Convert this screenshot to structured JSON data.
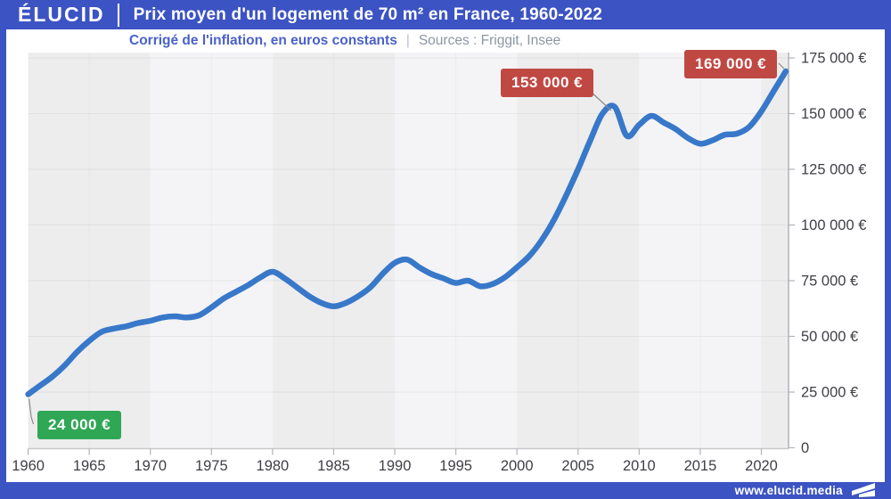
{
  "header": {
    "logo": "ÉLUCID",
    "title": "Prix moyen d'un logement de 70 m² en France, 1960-2022"
  },
  "subtitle": {
    "note": "Corrigé de l'inflation, en euros constants",
    "separator": "|",
    "sources": "Sources : Friggit, Insee"
  },
  "footer": {
    "url": "www.elucid.media"
  },
  "colors": {
    "accent_blue": "#3C53C3",
    "line_blue": "#3878C9",
    "badge_red": "#C04843",
    "badge_green": "#2FA755",
    "band_dark": "#ededee",
    "band_light": "#f4f4f6",
    "axis_gray": "#b2b2b8",
    "baseline_gray": "#c9c9ce",
    "tick_text": "#3f3f46",
    "callout_gray": "#8a8a8a"
  },
  "chart_data": {
    "type": "line",
    "title": "Prix moyen d'un logement de 70 m² en France, 1960-2022",
    "subtitle": "Corrigé de l'inflation, en euros constants",
    "sources": "Friggit, Insee",
    "unit": "euros constants",
    "xlim": [
      1960,
      2022
    ],
    "ylim": [
      0,
      175000
    ],
    "grid": true,
    "legend": "none",
    "decade_bands": true,
    "x": [
      1960,
      1961,
      1962,
      1963,
      1964,
      1965,
      1966,
      1967,
      1968,
      1969,
      1970,
      1971,
      1972,
      1973,
      1974,
      1975,
      1976,
      1977,
      1978,
      1979,
      1980,
      1981,
      1982,
      1983,
      1984,
      1985,
      1986,
      1987,
      1988,
      1989,
      1990,
      1991,
      1992,
      1993,
      1994,
      1995,
      1996,
      1997,
      1998,
      1999,
      2000,
      2001,
      2002,
      2003,
      2004,
      2005,
      2006,
      2007,
      2008,
      2009,
      2010,
      2011,
      2012,
      2013,
      2014,
      2015,
      2016,
      2017,
      2018,
      2019,
      2020,
      2021,
      2022
    ],
    "values": [
      24000,
      28000,
      32000,
      37000,
      43000,
      48000,
      52000,
      53500,
      54500,
      56000,
      57000,
      58500,
      59000,
      58500,
      59500,
      63000,
      67000,
      70000,
      73000,
      76500,
      79000,
      76000,
      72000,
      68000,
      65000,
      63500,
      65000,
      68000,
      72000,
      78000,
      83000,
      84500,
      81000,
      78000,
      76000,
      74000,
      75000,
      72500,
      73500,
      76500,
      81000,
      86000,
      93000,
      102000,
      113000,
      125000,
      138000,
      150000,
      153000,
      140000,
      145000,
      149000,
      146000,
      143000,
      139000,
      136500,
      138000,
      140500,
      141000,
      144000,
      151000,
      160000,
      169000
    ],
    "x_tick_labels": [
      "1960",
      "1965",
      "1970",
      "1975",
      "1980",
      "1985",
      "1990",
      "1995",
      "2000",
      "2005",
      "2010",
      "2015",
      "2020"
    ],
    "y_tick_labels": [
      "0",
      "25 000 €",
      "50 000 €",
      "75 000 €",
      "100 000 €",
      "125 000 €",
      "150 000 €",
      "175 000 €"
    ],
    "annotations": [
      {
        "label": "24 000 €",
        "year": 1960,
        "value": 24000,
        "color": "green"
      },
      {
        "label": "153 000 €",
        "year": 2008,
        "value": 153000,
        "color": "red"
      },
      {
        "label": "169 000 €",
        "year": 2022,
        "value": 169000,
        "color": "red"
      }
    ]
  }
}
